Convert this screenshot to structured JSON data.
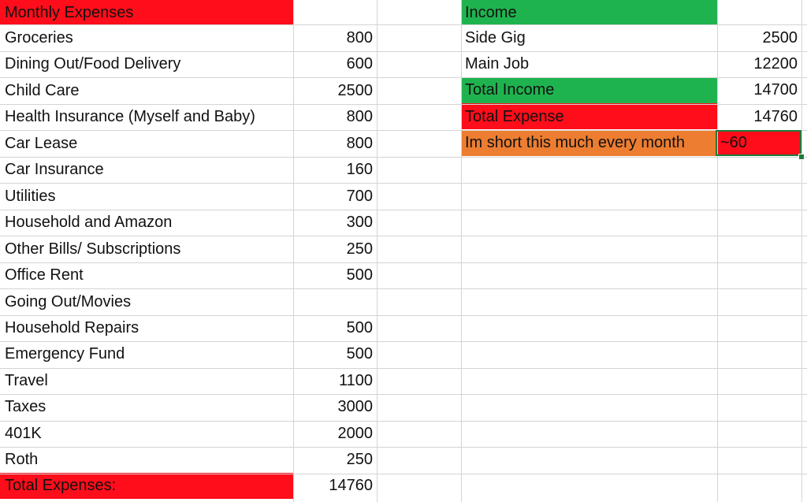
{
  "colors": {
    "red": "#ff0d1a",
    "green": "#1fb34f",
    "orange": "#ed7d31",
    "grid": "#d4d4d4",
    "selection": "#1f7a3d"
  },
  "expenses": {
    "header": "Monthly Expenses",
    "rows": [
      {
        "label": "Groceries",
        "value": "800"
      },
      {
        "label": "Dining Out/Food Delivery",
        "value": "600"
      },
      {
        "label": "Child Care",
        "value": "2500"
      },
      {
        "label": "Health Insurance (Myself and Baby)",
        "value": "800"
      },
      {
        "label": "Car Lease",
        "value": "800"
      },
      {
        "label": "Car Insurance",
        "value": "160"
      },
      {
        "label": "Utilities",
        "value": "700"
      },
      {
        "label": "Household and Amazon",
        "value": "300"
      },
      {
        "label": "Other Bills/ Subscriptions",
        "value": "250"
      },
      {
        "label": "Office Rent",
        "value": "500"
      },
      {
        "label": "Going Out/Movies",
        "value": ""
      },
      {
        "label": "Household Repairs",
        "value": "500"
      },
      {
        "label": "Emergency Fund",
        "value": "500"
      },
      {
        "label": "Travel",
        "value": "1100"
      },
      {
        "label": "Taxes",
        "value": "3000"
      },
      {
        "label": "401K",
        "value": "2000"
      },
      {
        "label": "Roth",
        "value": "250"
      }
    ],
    "total_label": "Total Expenses:",
    "total_value": "14760"
  },
  "income": {
    "header": "Income",
    "rows": [
      {
        "label": "Side Gig",
        "value": "2500"
      },
      {
        "label": "Main Job",
        "value": "12200"
      }
    ],
    "total_income_label": "Total Income",
    "total_income_value": "14700",
    "total_expense_label": "Total Expense",
    "total_expense_value": "14760",
    "short_label": "Im short this much every month",
    "short_value": "~60"
  }
}
